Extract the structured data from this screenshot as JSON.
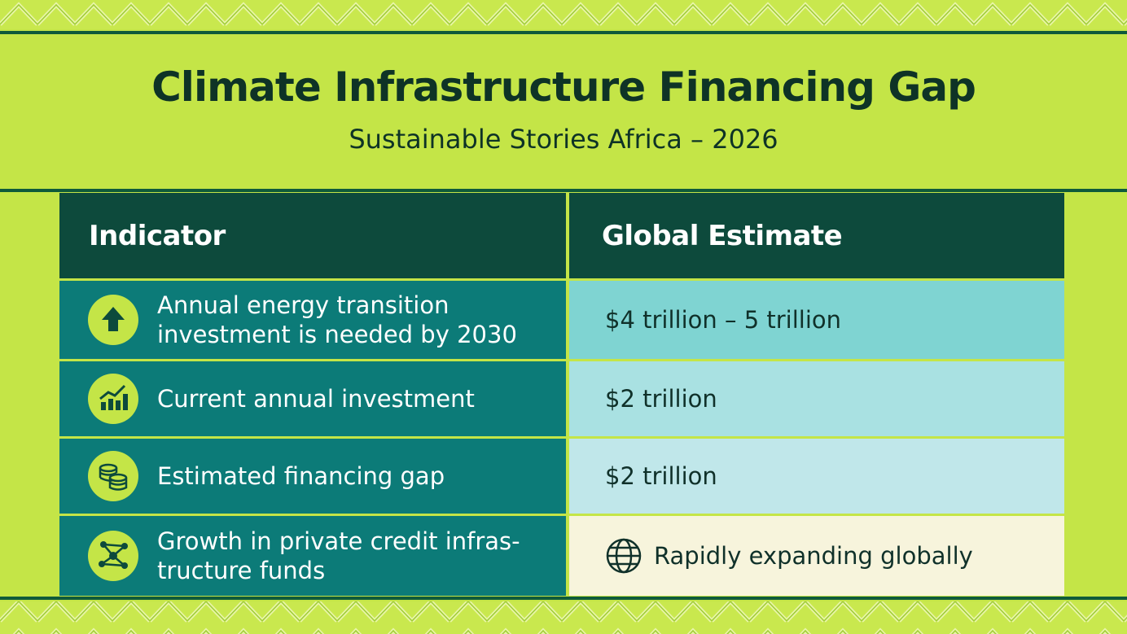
{
  "header": {
    "title": "Climate Infrastructure Financing Gap",
    "subtitle": "Sustainable Stories Africa – 2026"
  },
  "table": {
    "columns": [
      "Indicator",
      "Global Estimate"
    ],
    "rows": [
      [
        "Annual energy transition investment is needed by 2030",
        "$4 trillion – 5 trillion"
      ],
      [
        "Current annual investment",
        "$2 trillion"
      ],
      [
        "Estimated financing gap",
        "$2 trillion"
      ],
      [
        "Growth in private credit infras-tructure funds",
        "Rapidly expanding globally"
      ]
    ]
  }
}
